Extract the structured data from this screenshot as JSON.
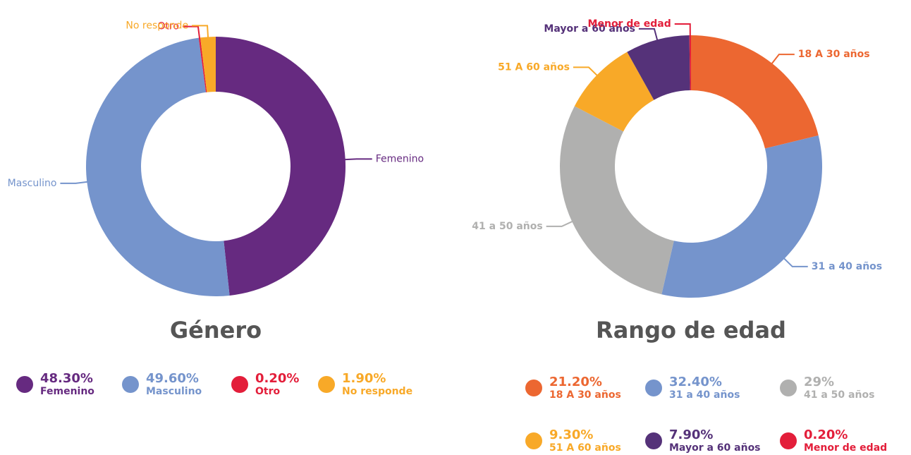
{
  "chart_data": [
    {
      "type": "donut",
      "title": "Género",
      "categories": [
        "Femenino",
        "Masculino",
        "Otro",
        "No responde"
      ],
      "values": [
        48.3,
        49.6,
        0.2,
        1.9
      ],
      "value_labels": [
        "48.30%",
        "49.60%",
        "0.20%",
        "1.90%"
      ],
      "colors": [
        "#662a80",
        "#7594cc",
        "#e31e3a",
        "#f8a928"
      ]
    },
    {
      "type": "donut",
      "title": "Rango de edad",
      "categories": [
        "18 A 30 años",
        "31 a 40 años",
        "41 a 50 años",
        "51 A 60 años",
        "Mayor a 60 años",
        "Menor de edad"
      ],
      "values": [
        21.2,
        32.4,
        29,
        9.3,
        7.9,
        0.2
      ],
      "value_labels": [
        "21.20%",
        "32.40%",
        "29%",
        "9.30%",
        "7.90%",
        "0.20%"
      ],
      "colors": [
        "#ec6731",
        "#7594cc",
        "#b0b0af",
        "#f8a928",
        "#553279",
        "#e31e3a"
      ]
    }
  ]
}
